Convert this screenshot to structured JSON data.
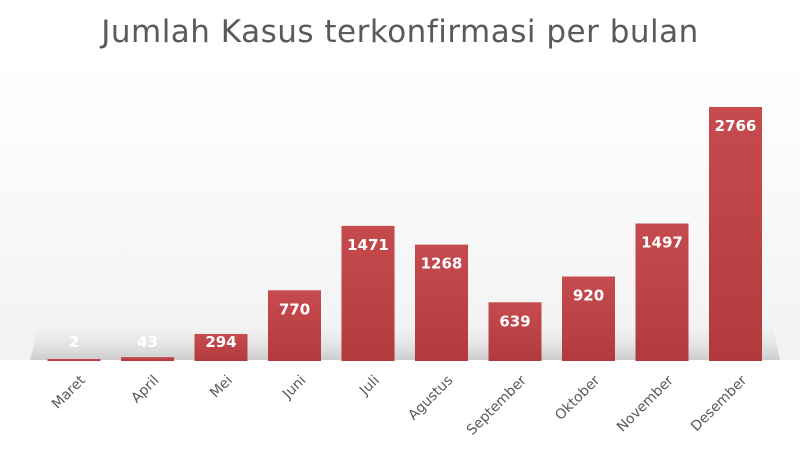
{
  "chart_data": {
    "type": "bar",
    "title": "Jumlah Kasus terkonfirmasi per bulan",
    "xlabel": "",
    "ylabel": "",
    "categories": [
      "Maret",
      "April",
      "Mei",
      "Juni",
      "Juli",
      "Agustus",
      "September",
      "Oktober",
      "November",
      "Desember"
    ],
    "values": [
      2,
      43,
      294,
      770,
      1471,
      1268,
      639,
      920,
      1497,
      2766
    ],
    "ylim": [
      0,
      2766
    ],
    "grid": false,
    "legend": "none",
    "bar_color": "#c0474a",
    "label_color": "#ffffff",
    "axis_label_color": "#595959"
  }
}
